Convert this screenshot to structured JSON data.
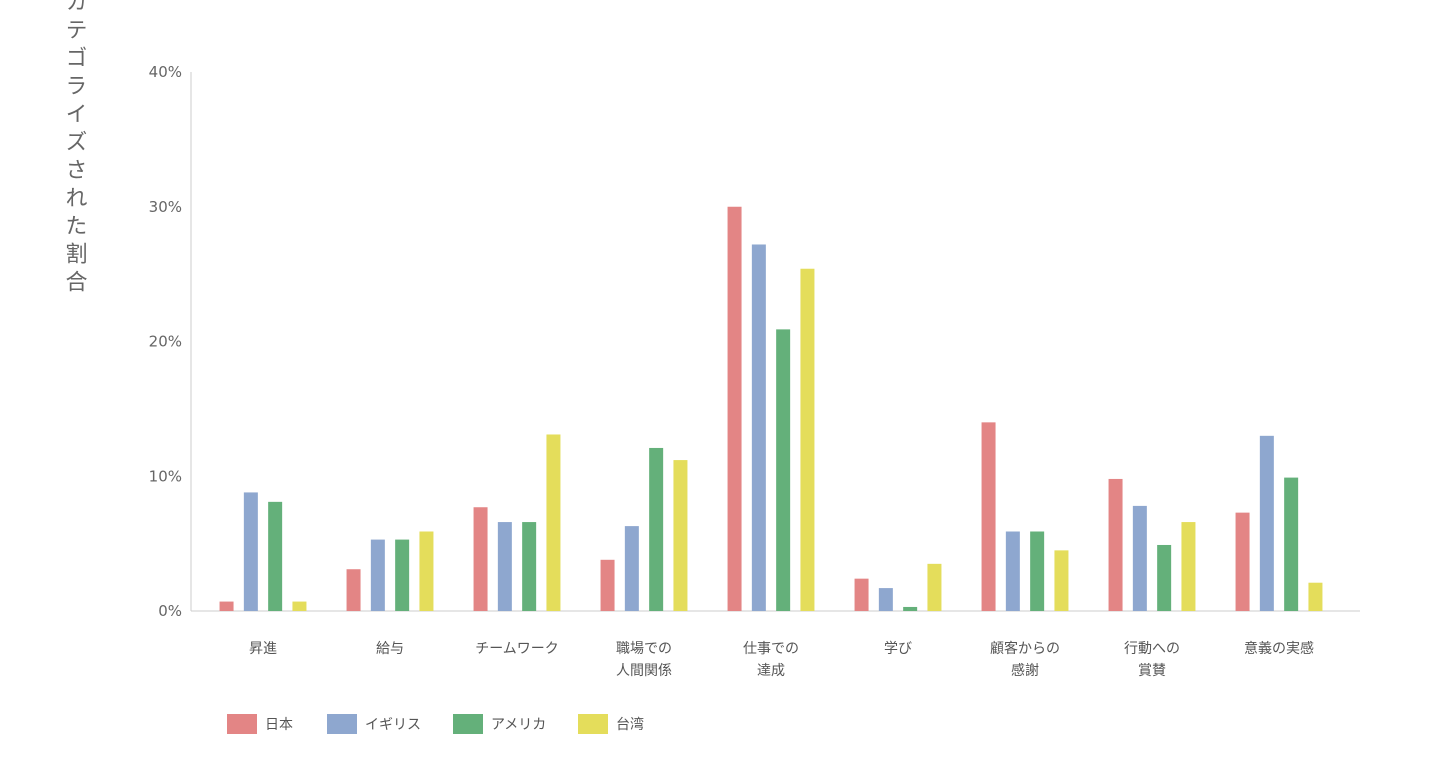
{
  "chart_data": {
    "type": "bar",
    "ylabel": "カテゴライズされた割合",
    "ylim": [
      0,
      40
    ],
    "yticks": [
      "0%",
      "10%",
      "20%",
      "30%",
      "40%"
    ],
    "ytick_values": [
      0,
      10,
      20,
      30,
      40
    ],
    "grid": false,
    "legend_position": "bottom-left",
    "categories": [
      [
        "昇進"
      ],
      [
        "給与"
      ],
      [
        "チームワーク"
      ],
      [
        "職場での",
        "人間関係"
      ],
      [
        "仕事での",
        "達成"
      ],
      [
        "学び"
      ],
      [
        "顧客からの",
        "感謝"
      ],
      [
        "行動への",
        "賞賛"
      ],
      [
        "意義の実感"
      ]
    ],
    "series": [
      {
        "name": "日本",
        "color": "#e38585",
        "values": [
          0.7,
          3.1,
          7.7,
          3.8,
          30.0,
          2.4,
          14.0,
          9.8,
          7.3
        ]
      },
      {
        "name": "イギリス",
        "color": "#8ea7cf",
        "values": [
          8.8,
          5.3,
          6.6,
          6.3,
          27.2,
          1.7,
          5.9,
          7.8,
          13.0
        ]
      },
      {
        "name": "アメリカ",
        "color": "#64b07a",
        "values": [
          8.1,
          5.3,
          6.6,
          12.1,
          20.9,
          0.3,
          5.9,
          4.9,
          9.9
        ]
      },
      {
        "name": "台湾",
        "color": "#e4dd5b",
        "values": [
          0.7,
          5.9,
          13.1,
          11.2,
          25.4,
          3.5,
          4.5,
          6.6,
          2.1
        ]
      }
    ]
  }
}
